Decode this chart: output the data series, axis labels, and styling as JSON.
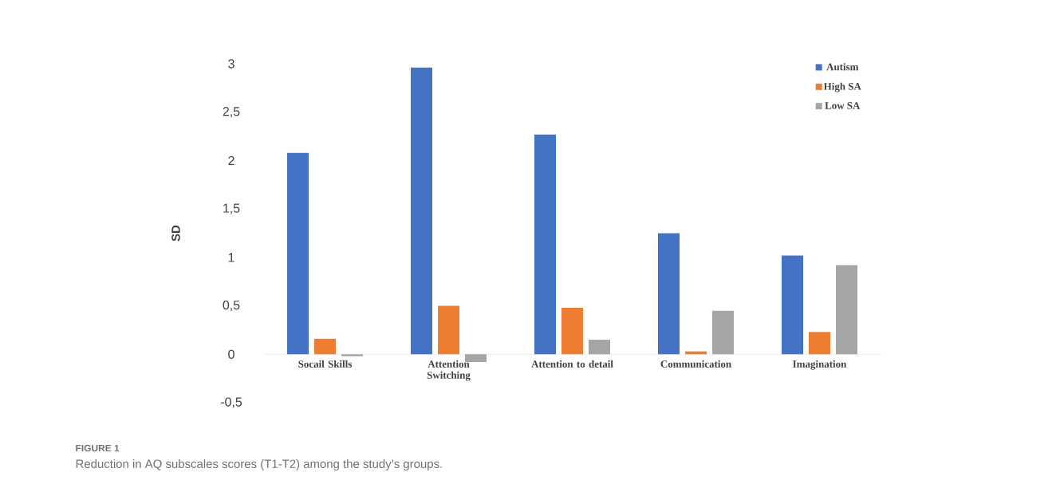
{
  "chart_data": {
    "type": "bar",
    "ylabel": "SD",
    "categories": [
      "Socail Skills",
      "Attention Switching",
      "Attention to detail",
      "Communication",
      "Imagination"
    ],
    "series": [
      {
        "name": "Autism",
        "color": "#4472c4",
        "values": [
          2.08,
          2.96,
          2.27,
          1.25,
          1.02
        ]
      },
      {
        "name": "High SA",
        "color": "#ed7d31",
        "values": [
          0.16,
          0.5,
          0.48,
          0.03,
          0.23
        ]
      },
      {
        "name": "Low SA",
        "color": "#a5a5a5",
        "values": [
          -0.02,
          -0.08,
          0.15,
          0.45,
          0.92
        ]
      }
    ],
    "ylim": [
      -0.5,
      3
    ],
    "yticks": [
      {
        "value": -0.5,
        "label": "-0,5"
      },
      0,
      {
        "value": 0.5,
        "label": "0,5"
      },
      1,
      {
        "value": 1.5,
        "label": "1,5"
      },
      2,
      {
        "value": 2.5,
        "label": "2,5"
      },
      3
    ],
    "legend": "top right",
    "grid": false,
    "annotations": [
      "FIGURE 1",
      "Reduction in AQ subscales scores (T1-T2) among the study’s groups."
    ]
  }
}
